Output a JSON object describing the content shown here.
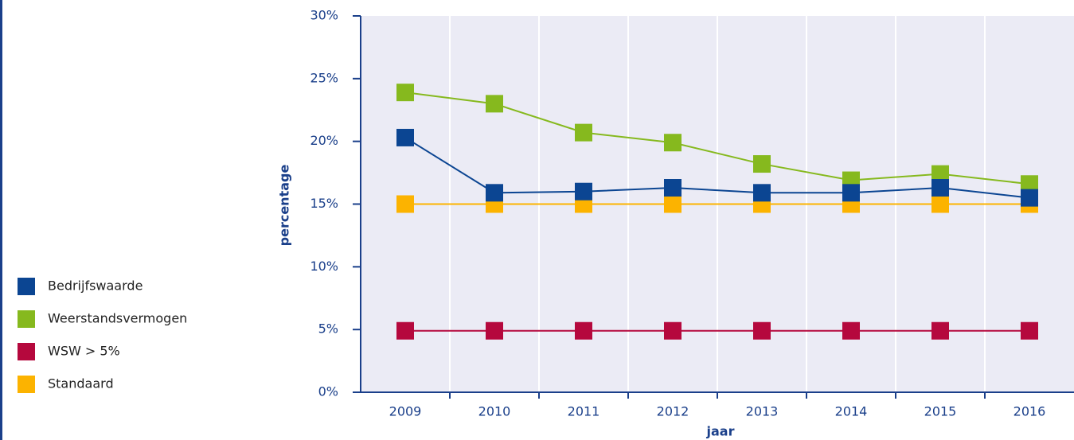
{
  "chart_data": {
    "type": "line",
    "x_label": "jaar",
    "y_label": "percentage",
    "categories": [
      "2009",
      "2010",
      "2011",
      "2012",
      "2013",
      "2014",
      "2015",
      "2016"
    ],
    "series": [
      {
        "name": "Bedrijfswaarde",
        "color": "#0b4592",
        "values": [
          20.3,
          15.9,
          16.0,
          16.3,
          15.9,
          15.9,
          16.3,
          15.5
        ]
      },
      {
        "name": "Weerstandsvermogen",
        "color": "#86b91e",
        "values": [
          23.9,
          23.0,
          20.7,
          19.9,
          18.2,
          16.9,
          17.4,
          16.6
        ]
      },
      {
        "name": "WSW > 5%",
        "color": "#b5083d",
        "values": [
          4.9,
          4.9,
          4.9,
          4.9,
          4.9,
          4.9,
          4.9,
          4.9
        ]
      },
      {
        "name": "Standaard",
        "color": "#fcb300",
        "values": [
          15,
          15,
          15,
          15,
          15,
          15,
          15,
          15
        ]
      }
    ],
    "ylim": [
      0,
      30
    ],
    "yticks": [
      {
        "value": 0,
        "label": "0%"
      },
      {
        "value": 5,
        "label": "5%"
      },
      {
        "value": 10,
        "label": "10%"
      },
      {
        "value": 15,
        "label": "15%"
      },
      {
        "value": 20,
        "label": "20%"
      },
      {
        "value": 25,
        "label": "25%"
      },
      {
        "value": 30,
        "label": "30%"
      }
    ],
    "legend": "left"
  }
}
